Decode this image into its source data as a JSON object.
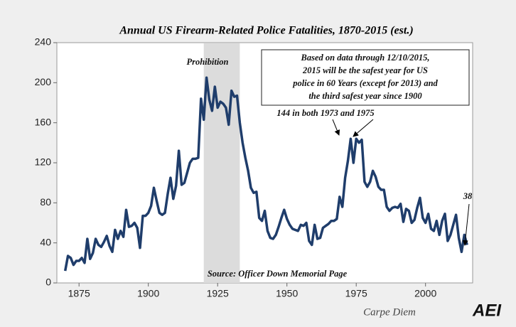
{
  "chart_data": {
    "type": "line",
    "title": "Annual US Firearm-Related Police Fatalities, 1870-2015 (est.)",
    "x": [
      1870,
      1871,
      1872,
      1873,
      1874,
      1875,
      1876,
      1877,
      1878,
      1879,
      1880,
      1881,
      1882,
      1883,
      1884,
      1885,
      1886,
      1887,
      1888,
      1889,
      1890,
      1891,
      1892,
      1893,
      1894,
      1895,
      1896,
      1897,
      1898,
      1899,
      1900,
      1901,
      1902,
      1903,
      1904,
      1905,
      1906,
      1907,
      1908,
      1909,
      1910,
      1911,
      1912,
      1913,
      1914,
      1915,
      1916,
      1917,
      1918,
      1919,
      1920,
      1921,
      1922,
      1923,
      1924,
      1925,
      1926,
      1927,
      1928,
      1929,
      1930,
      1931,
      1932,
      1933,
      1934,
      1935,
      1936,
      1937,
      1938,
      1939,
      1940,
      1941,
      1942,
      1943,
      1944,
      1945,
      1946,
      1947,
      1948,
      1949,
      1950,
      1951,
      1952,
      1953,
      1954,
      1955,
      1956,
      1957,
      1958,
      1959,
      1960,
      1961,
      1962,
      1963,
      1964,
      1965,
      1966,
      1967,
      1968,
      1969,
      1970,
      1971,
      1972,
      1973,
      1974,
      1975,
      1976,
      1977,
      1978,
      1979,
      1980,
      1981,
      1982,
      1983,
      1984,
      1985,
      1986,
      1987,
      1988,
      1989,
      1990,
      1991,
      1992,
      1993,
      1994,
      1995,
      1996,
      1997,
      1998,
      1999,
      2000,
      2001,
      2002,
      2003,
      2004,
      2005,
      2006,
      2007,
      2008,
      2009,
      2010,
      2011,
      2012,
      2013,
      2014,
      2015
    ],
    "values": [
      12,
      27,
      25,
      18,
      22,
      22,
      25,
      20,
      44,
      24,
      30,
      44,
      38,
      36,
      41,
      47,
      37,
      31,
      53,
      44,
      52,
      46,
      73,
      56,
      57,
      60,
      55,
      35,
      67,
      67,
      70,
      77,
      95,
      82,
      70,
      68,
      70,
      89,
      105,
      84,
      97,
      132,
      98,
      100,
      110,
      120,
      124,
      124,
      125,
      184,
      163,
      205,
      183,
      172,
      196,
      175,
      181,
      179,
      175,
      158,
      192,
      186,
      187,
      160,
      140,
      125,
      112,
      95,
      90,
      91,
      65,
      62,
      72,
      52,
      45,
      44,
      48,
      56,
      65,
      73,
      64,
      58,
      54,
      53,
      52,
      58,
      57,
      60,
      42,
      38,
      58,
      44,
      45,
      55,
      57,
      59,
      62,
      62,
      64,
      86,
      76,
      105,
      122,
      144,
      120,
      144,
      140,
      143,
      101,
      96,
      101,
      112,
      106,
      96,
      93,
      93,
      76,
      72,
      75,
      76,
      75,
      79,
      61,
      74,
      72,
      60,
      63,
      75,
      85,
      65,
      60,
      69,
      54,
      52,
      62,
      48,
      62,
      69,
      42,
      48,
      58,
      68,
      45,
      31,
      48,
      38
    ],
    "color": "#1f3d6b",
    "xlim": [
      1867,
      2017
    ],
    "ylim": [
      0,
      240
    ],
    "xticks": [
      1875,
      1900,
      1925,
      1950,
      1975,
      2000
    ],
    "yticks": [
      0,
      40,
      80,
      120,
      160,
      200,
      240
    ],
    "shaded_period": {
      "label": "Prohibition",
      "start": 1920,
      "end": 1933
    },
    "note_box": [
      "Based on data through 12/10/2015,",
      "2015 will be the safest year for US",
      "police in 60 Years (except for 2013) and",
      "the third safest year since 1900"
    ],
    "peak_note": "144 in both 1973 and 1975",
    "last_note": "38",
    "source": "Source: Officer Down Memorial Page",
    "footer": "Carpe Diem",
    "logo": "AEI"
  }
}
